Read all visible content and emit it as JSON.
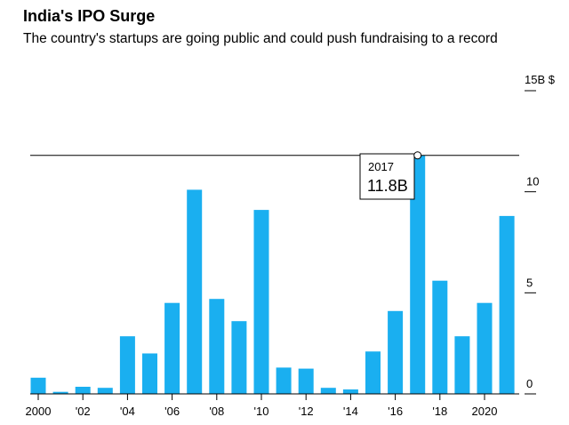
{
  "chart_data": {
    "type": "bar",
    "title": "India's IPO Surge",
    "subtitle": "The country's startups are going public and could push fundraising to a record",
    "unit_label": "15B $",
    "x": [
      2000,
      2001,
      2002,
      2003,
      2004,
      2005,
      2006,
      2007,
      2008,
      2009,
      2010,
      2011,
      2012,
      2013,
      2014,
      2015,
      2016,
      2017,
      2018,
      2019,
      2020,
      2021
    ],
    "values": [
      0.8,
      0.1,
      0.35,
      0.3,
      2.85,
      2.0,
      4.5,
      10.1,
      4.7,
      3.6,
      9.1,
      1.3,
      1.25,
      0.3,
      0.22,
      2.1,
      4.1,
      11.8,
      5.6,
      2.85,
      4.5,
      8.8
    ],
    "x_tick_values": [
      2000,
      2002,
      2004,
      2006,
      2008,
      2010,
      2012,
      2014,
      2016,
      2018,
      2020
    ],
    "x_tick_labels": [
      "2000",
      "'02",
      "'04",
      "'06",
      "'08",
      "'10",
      "'12",
      "'14",
      "'16",
      "'18",
      "2020"
    ],
    "y_ticks": [
      0,
      5,
      10,
      15
    ],
    "y_tick_labels": [
      "0",
      "5",
      "10",
      ""
    ],
    "ylim": [
      0,
      15
    ],
    "reference_line": 11.8,
    "annotation": {
      "year": "2017",
      "value": "11.8B"
    },
    "colors": {
      "bar": "#1aaff0",
      "axis": "#000000",
      "reference": "#000000"
    }
  }
}
